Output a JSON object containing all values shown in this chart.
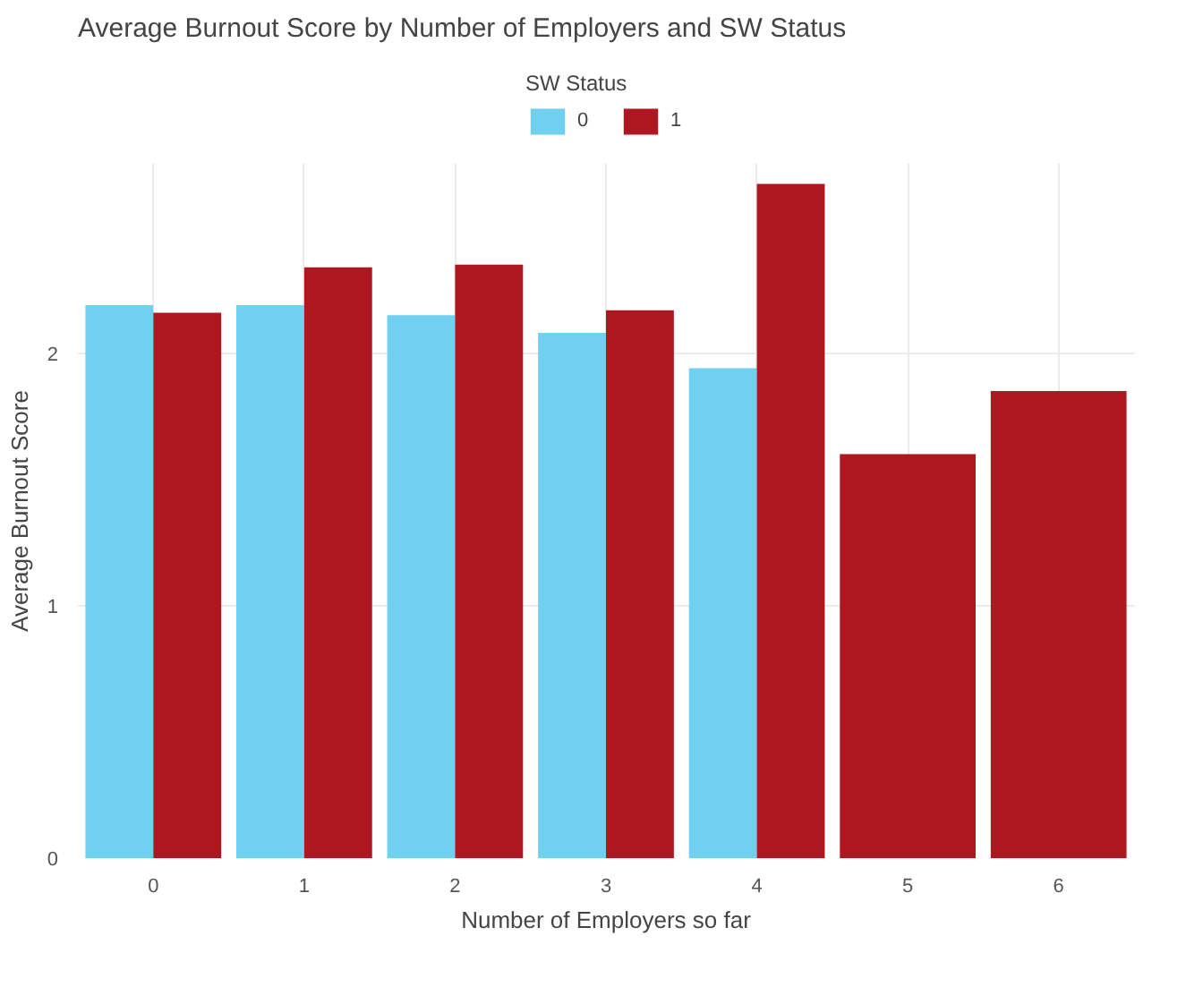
{
  "chart_data": {
    "type": "bar",
    "title": "Average Burnout Score by Number of Employers and SW Status",
    "xlabel": "Number of Employers so far",
    "ylabel": "Average Burnout Score",
    "legend_title": "SW Status",
    "categories": [
      "0",
      "1",
      "2",
      "3",
      "4",
      "5",
      "6"
    ],
    "series": [
      {
        "name": "0",
        "color": "#6fd0ef",
        "values": [
          2.19,
          2.19,
          2.15,
          2.08,
          1.94,
          null,
          null
        ]
      },
      {
        "name": "1",
        "color": "#ae1720",
        "values": [
          2.16,
          2.34,
          2.35,
          2.17,
          2.67,
          1.6,
          1.85
        ]
      }
    ],
    "ylim": [
      0,
      2.75
    ],
    "yticks": [
      0,
      1,
      2
    ],
    "grid": true,
    "legend": "top"
  }
}
